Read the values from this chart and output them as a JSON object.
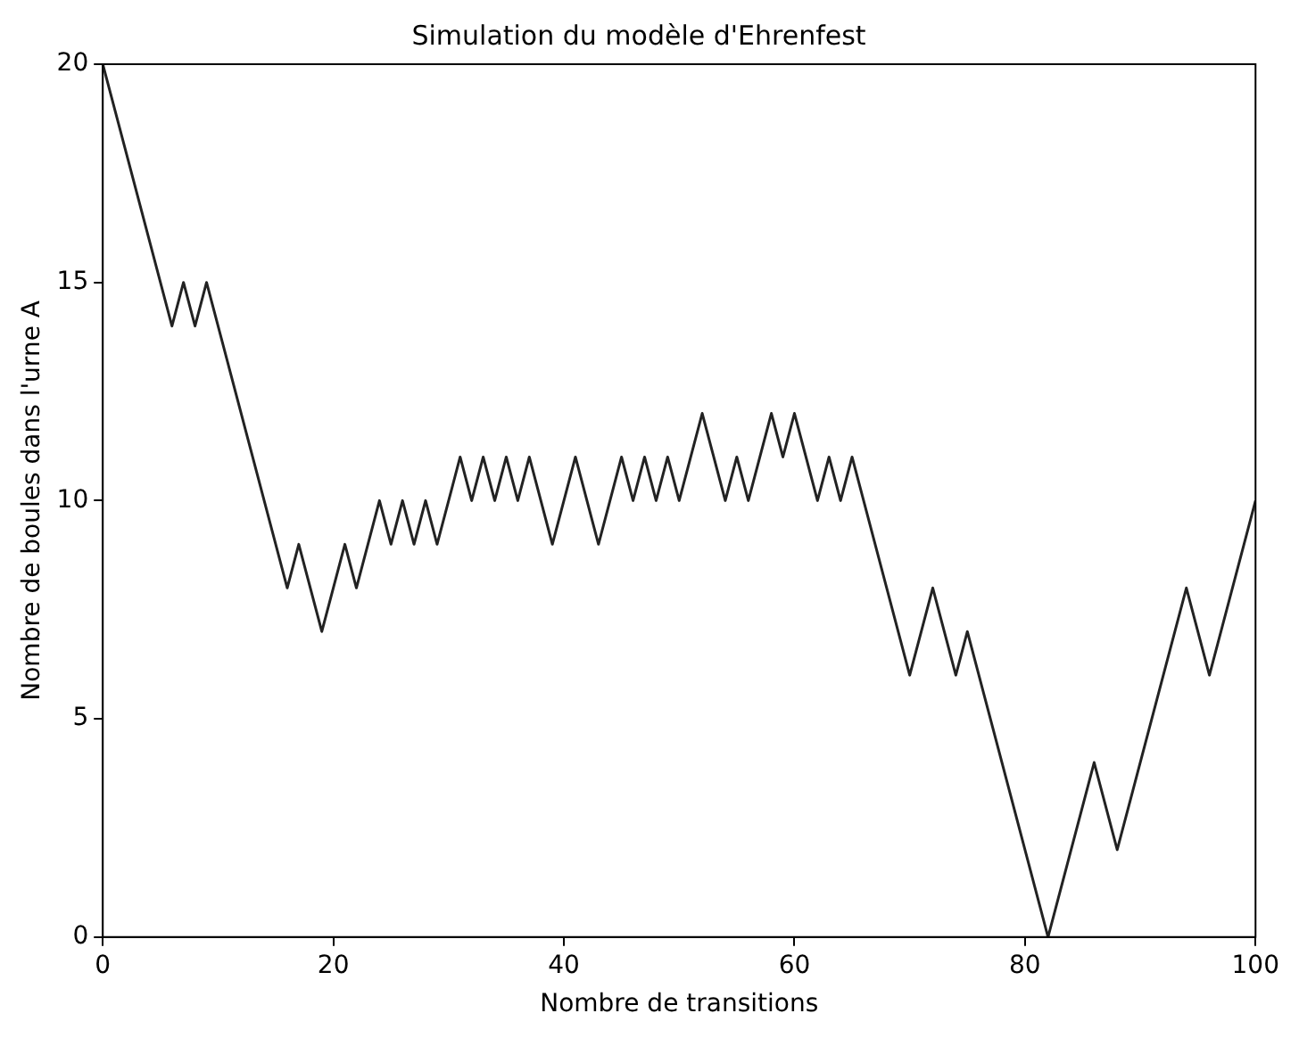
{
  "chart_data": {
    "type": "line",
    "title": "Simulation du modèle d'Ehrenfest",
    "xlabel": "Nombre de transitions",
    "ylabel": "Nombre de boules dans l'urne A",
    "series": [
      {
        "color": "#222222",
        "x": [
          0,
          6,
          7,
          8,
          9,
          16,
          17,
          19,
          21,
          22,
          24,
          25,
          26,
          27,
          28,
          29,
          31,
          32,
          33,
          34,
          35,
          36,
          37,
          39,
          41,
          43,
          45,
          46,
          47,
          48,
          49,
          50,
          52,
          54,
          55,
          56,
          58,
          59,
          60,
          62,
          63,
          64,
          65,
          70,
          72,
          74,
          75,
          82,
          86,
          88,
          94,
          96,
          100
        ],
        "values": [
          20,
          14,
          15,
          14,
          15,
          8,
          9,
          7,
          9,
          8,
          10,
          9,
          10,
          9,
          10,
          9,
          11,
          10,
          11,
          10,
          11,
          10,
          11,
          9,
          11,
          9,
          11,
          10,
          11,
          10,
          11,
          10,
          12,
          10,
          11,
          10,
          12,
          11,
          12,
          10,
          11,
          10,
          11,
          6,
          8,
          6,
          7,
          0,
          4,
          2,
          8,
          6,
          10
        ]
      }
    ],
    "xlim": [
      0,
      100
    ],
    "xticks": [
      0,
      20,
      40,
      60,
      80,
      100
    ],
    "ylim": [
      0,
      20
    ],
    "yticks": [
      0,
      5,
      10,
      15,
      20
    ],
    "grid": false,
    "legend": false,
    "marker": "none",
    "line_style": "solid"
  }
}
